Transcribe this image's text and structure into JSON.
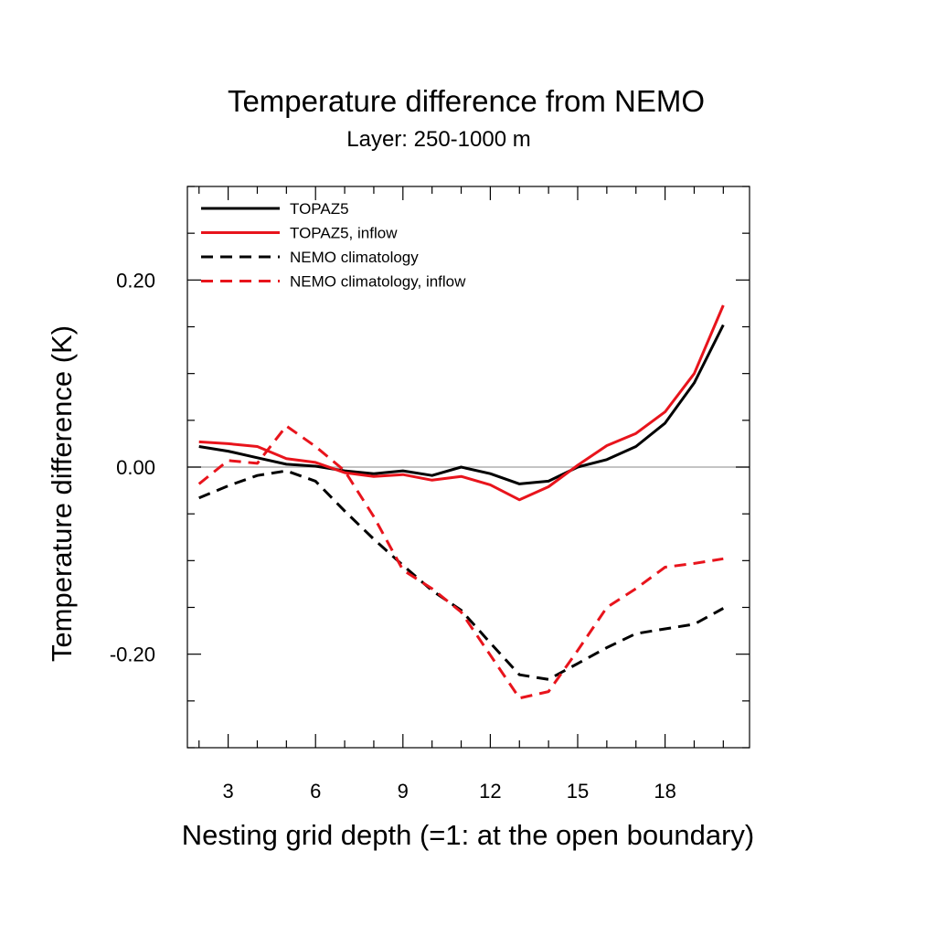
{
  "chart_data": {
    "type": "line",
    "title": "Temperature difference from NEMO",
    "subtitle": "Layer: 250-1000 m",
    "xlabel": "Nesting grid depth (=1: at the open boundary)",
    "ylabel": "Temperature difference (K)",
    "xlim": [
      1.6,
      20.9
    ],
    "ylim": [
      -0.3,
      0.3
    ],
    "x_ticks": [
      3,
      6,
      9,
      12,
      15,
      18
    ],
    "x_tick_labels": [
      "3",
      "6",
      "9",
      "12",
      "15",
      "18"
    ],
    "y_ticks": [
      -0.2,
      0.0,
      0.2
    ],
    "y_tick_labels": [
      "-0.20",
      "0.00",
      "0.20"
    ],
    "reference_line": 0.0,
    "legend_position": "top-left",
    "x": [
      2,
      3,
      4,
      5,
      6,
      7,
      8,
      9,
      10,
      11,
      12,
      13,
      14,
      15,
      16,
      17,
      18,
      19,
      20
    ],
    "series": [
      {
        "name": "TOPAZ5",
        "color": "#000000",
        "dash": "solid",
        "values": [
          0.022,
          0.017,
          0.01,
          0.003,
          0.001,
          -0.004,
          -0.007,
          -0.004,
          -0.009,
          0.0,
          -0.007,
          -0.018,
          -0.015,
          0.0,
          0.008,
          0.022,
          0.047,
          0.09,
          0.152
        ]
      },
      {
        "name": "TOPAZ5, inflow",
        "color": "#e8141c",
        "dash": "solid",
        "values": [
          0.027,
          0.025,
          0.022,
          0.009,
          0.005,
          -0.006,
          -0.01,
          -0.008,
          -0.014,
          -0.01,
          -0.019,
          -0.035,
          -0.021,
          0.002,
          0.023,
          0.036,
          0.059,
          0.1,
          0.173
        ]
      },
      {
        "name": "NEMO climatology",
        "color": "#000000",
        "dash": "dashed",
        "values": [
          -0.033,
          -0.02,
          -0.009,
          -0.004,
          -0.015,
          -0.047,
          -0.077,
          -0.105,
          -0.132,
          -0.153,
          -0.188,
          -0.222,
          -0.227,
          -0.21,
          -0.193,
          -0.178,
          -0.173,
          -0.168,
          -0.151
        ]
      },
      {
        "name": "NEMO climatology, inflow",
        "color": "#e8141c",
        "dash": "dashed",
        "values": [
          -0.018,
          0.007,
          0.004,
          0.044,
          0.022,
          -0.004,
          -0.053,
          -0.11,
          -0.13,
          -0.155,
          -0.201,
          -0.247,
          -0.24,
          -0.196,
          -0.15,
          -0.13,
          -0.107,
          -0.103,
          -0.098
        ]
      }
    ]
  }
}
